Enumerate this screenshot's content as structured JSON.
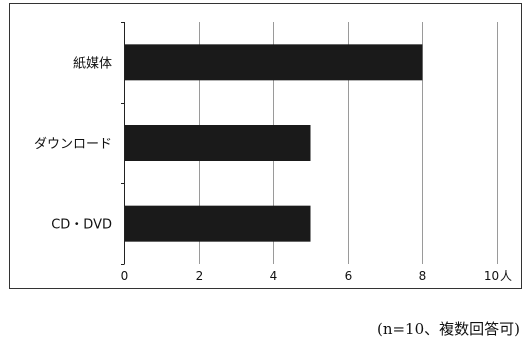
{
  "chart_data": {
    "type": "bar",
    "orientation": "horizontal",
    "categories": [
      "紙媒体",
      "ダウンロード",
      "CD・DVD"
    ],
    "values": [
      8,
      5,
      5
    ],
    "xlim": [
      0,
      10
    ],
    "x_ticks": [
      "0",
      "2",
      "4",
      "6",
      "8",
      "10"
    ],
    "x_unit": "人",
    "grid": "vertical",
    "bar_color": "#1a1a1a",
    "grid_color": "#9a9a9a",
    "note": "(n=10、複数回答可)"
  }
}
